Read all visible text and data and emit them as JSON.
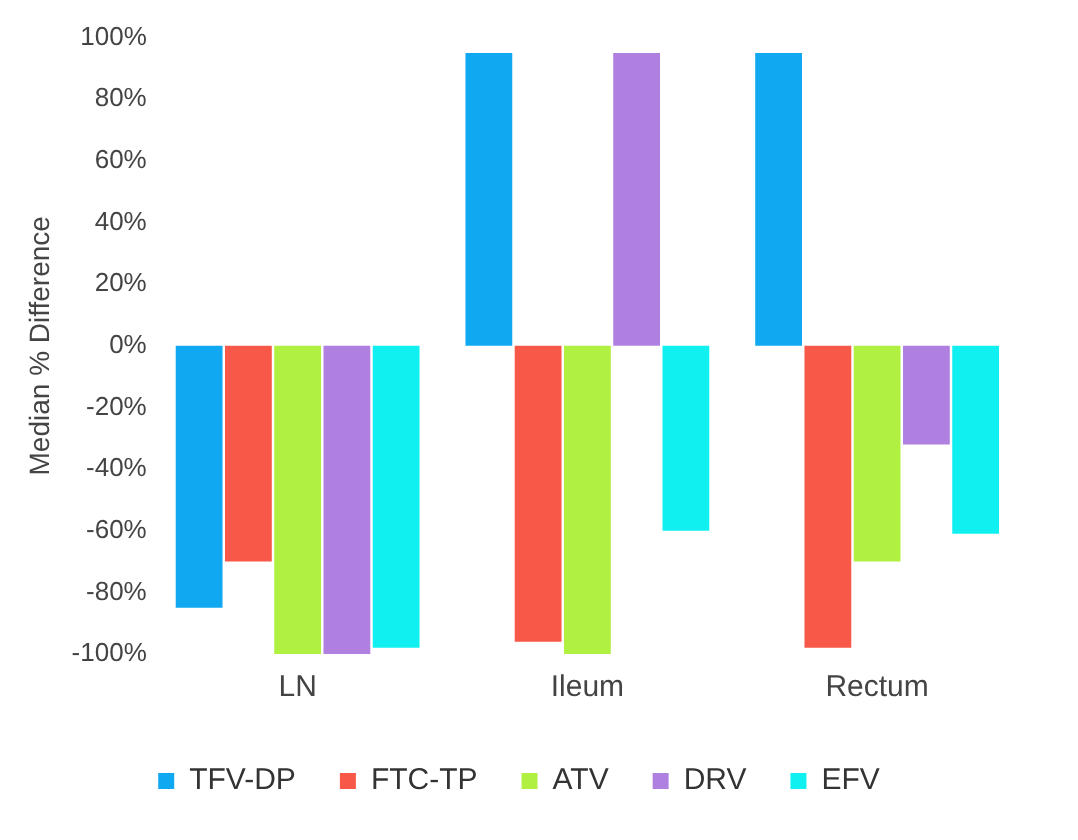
{
  "chart_data": {
    "type": "bar",
    "ylabel": "Median % Difference",
    "categories": [
      "LN",
      "Ileum",
      "Rectum"
    ],
    "series": [
      {
        "name": "TFV-DP",
        "color": "#10a8f0",
        "values": [
          -85,
          95,
          95
        ]
      },
      {
        "name": "FTC-TP",
        "color": "#f85848",
        "values": [
          -70,
          -96,
          -98
        ]
      },
      {
        "name": "ATV",
        "color": "#b0f040",
        "values": [
          -100,
          -100,
          -70
        ]
      },
      {
        "name": "DRV",
        "color": "#b080e0",
        "values": [
          -100,
          95,
          -32
        ]
      },
      {
        "name": "EFV",
        "color": "#10f0f0",
        "values": [
          -98,
          -60,
          -61
        ]
      }
    ],
    "ylim": [
      -100,
      100
    ],
    "yticks": [
      {
        "value": -100,
        "label": "-100%"
      },
      {
        "value": -80,
        "label": "-80%"
      },
      {
        "value": -60,
        "label": "-60%"
      },
      {
        "value": -40,
        "label": "-40%"
      },
      {
        "value": -20,
        "label": "-20%"
      },
      {
        "value": 0,
        "label": "0%"
      },
      {
        "value": 20,
        "label": "20%"
      },
      {
        "value": 40,
        "label": "40%"
      },
      {
        "value": 60,
        "label": "60%"
      },
      {
        "value": 80,
        "label": "80%"
      },
      {
        "value": 100,
        "label": "100%"
      }
    ],
    "grid": false,
    "legend": "bottom"
  }
}
